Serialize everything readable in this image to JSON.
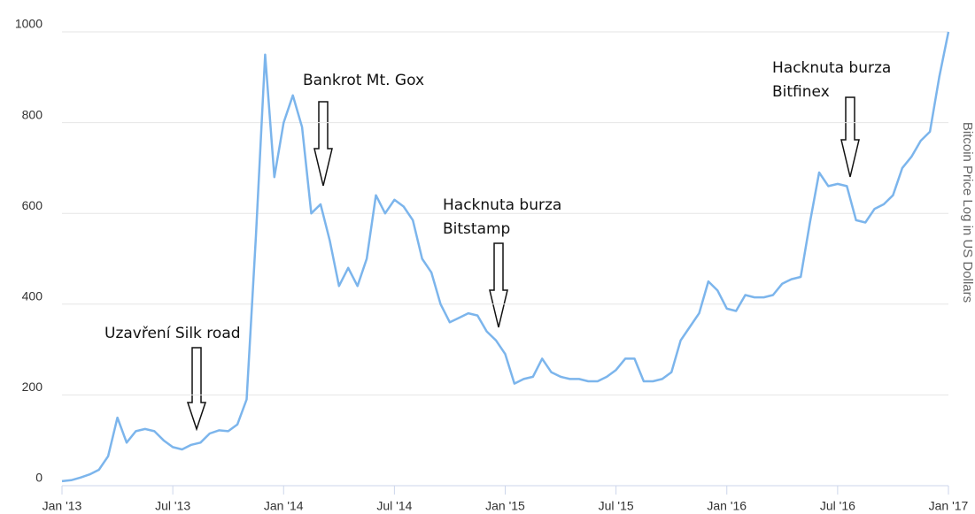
{
  "chart_data": {
    "type": "line",
    "y_axis_label": "Bitcoin Price Log in US Dollars",
    "categories": [
      "Jan '13",
      null,
      null,
      null,
      null,
      null,
      null,
      null,
      null,
      null,
      null,
      null,
      "Jul '13",
      null,
      null,
      null,
      null,
      null,
      null,
      null,
      null,
      null,
      null,
      null,
      "Jan '14",
      null,
      null,
      null,
      null,
      null,
      null,
      null,
      null,
      null,
      null,
      null,
      "Jul '14",
      null,
      null,
      null,
      null,
      null,
      null,
      null,
      null,
      null,
      null,
      null,
      "Jan '15",
      null,
      null,
      null,
      null,
      null,
      null,
      null,
      null,
      null,
      null,
      null,
      "Jul '15",
      null,
      null,
      null,
      null,
      null,
      null,
      null,
      null,
      null,
      null,
      null,
      "Jan '16",
      null,
      null,
      null,
      null,
      null,
      null,
      null,
      null,
      null,
      null,
      null,
      "Jul '16",
      null,
      null,
      null,
      null,
      null,
      null,
      null,
      null,
      null,
      null,
      null,
      "Jan '17"
    ],
    "series": [
      {
        "name": "Bitcoin",
        "color": "#7cb5ec",
        "values": [
          10,
          12,
          18,
          25,
          35,
          65,
          150,
          95,
          120,
          125,
          120,
          100,
          85,
          80,
          90,
          95,
          115,
          122,
          120,
          135,
          190,
          550,
          950,
          680,
          800,
          860,
          790,
          600,
          620,
          540,
          440,
          480,
          440,
          500,
          640,
          600,
          630,
          615,
          585,
          500,
          470,
          400,
          360,
          370,
          380,
          375,
          340,
          320,
          290,
          225,
          235,
          240,
          280,
          250,
          240,
          235,
          235,
          230,
          230,
          240,
          255,
          280,
          280,
          230,
          230,
          235,
          250,
          320,
          350,
          380,
          450,
          430,
          390,
          385,
          420,
          415,
          415,
          420,
          445,
          455,
          460,
          580,
          690,
          660,
          665,
          660,
          585,
          580,
          610,
          620,
          640,
          700,
          725,
          760,
          780,
          900,
          1000
        ]
      }
    ],
    "ylim": [
      0,
      1000
    ],
    "yticks": [
      0,
      200,
      400,
      600,
      800,
      1000
    ],
    "grid": true,
    "annotations": [
      {
        "lines": [
          "Uzavření Silk road"
        ]
      },
      {
        "lines": [
          "Bankrot Mt. Gox"
        ]
      },
      {
        "lines": [
          "Hacknuta burza",
          "Bitstamp"
        ]
      },
      {
        "lines": [
          "Hacknuta burza",
          "Bitfinex"
        ]
      }
    ]
  }
}
